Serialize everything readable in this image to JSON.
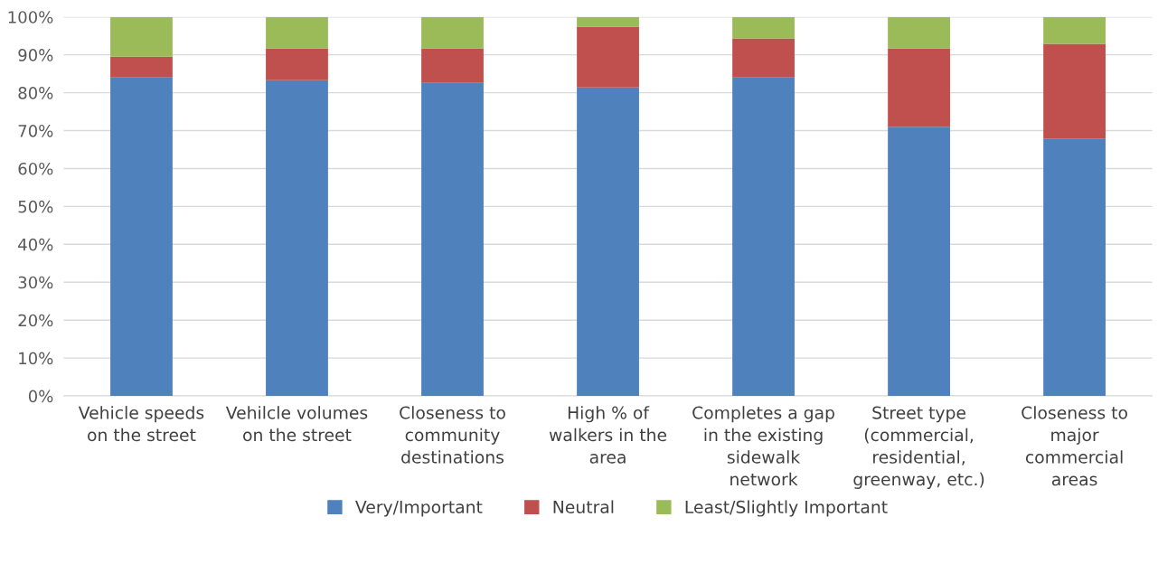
{
  "chart_data": {
    "type": "bar",
    "stacked": true,
    "categories": [
      "Vehicle speeds\non the street",
      "Vehilcle volumes\non the street",
      "Closeness to\ncommunity\ndestinations",
      "High % of\nwalkers in the\narea",
      "Completes a gap\nin the existing\nsidewalk\nnetwork",
      "Street type\n(commercial,\nresidential,\ngreenway, etc.)",
      "Closeness to\nmajor\ncommercial\nareas"
    ],
    "series": [
      {
        "name": "Very/Important",
        "color": "#4f81bd",
        "values": [
          84.0,
          83.3,
          82.6,
          81.4,
          84.0,
          71.0,
          67.9
        ]
      },
      {
        "name": "Neutral",
        "color": "#c0504d",
        "values": [
          5.5,
          8.4,
          9.1,
          16.0,
          10.3,
          20.7,
          25.0
        ]
      },
      {
        "name": "Least/Slightly Important",
        "color": "#9bbb59",
        "values": [
          10.5,
          8.3,
          8.3,
          2.6,
          5.7,
          8.3,
          7.1
        ]
      }
    ],
    "ylim": [
      0,
      100
    ],
    "yticks": [
      {
        "value": 0,
        "label": "0%"
      },
      {
        "value": 10,
        "label": "10%"
      },
      {
        "value": 20,
        "label": "20%"
      },
      {
        "value": 30,
        "label": "30%"
      },
      {
        "value": 40,
        "label": "40%"
      },
      {
        "value": 50,
        "label": "50%"
      },
      {
        "value": 60,
        "label": "60%"
      },
      {
        "value": 70,
        "label": "70%"
      },
      {
        "value": 80,
        "label": "80%"
      },
      {
        "value": 90,
        "label": "90%"
      },
      {
        "value": 100,
        "label": "100%"
      }
    ],
    "grid": "y",
    "legend": "bottom"
  }
}
